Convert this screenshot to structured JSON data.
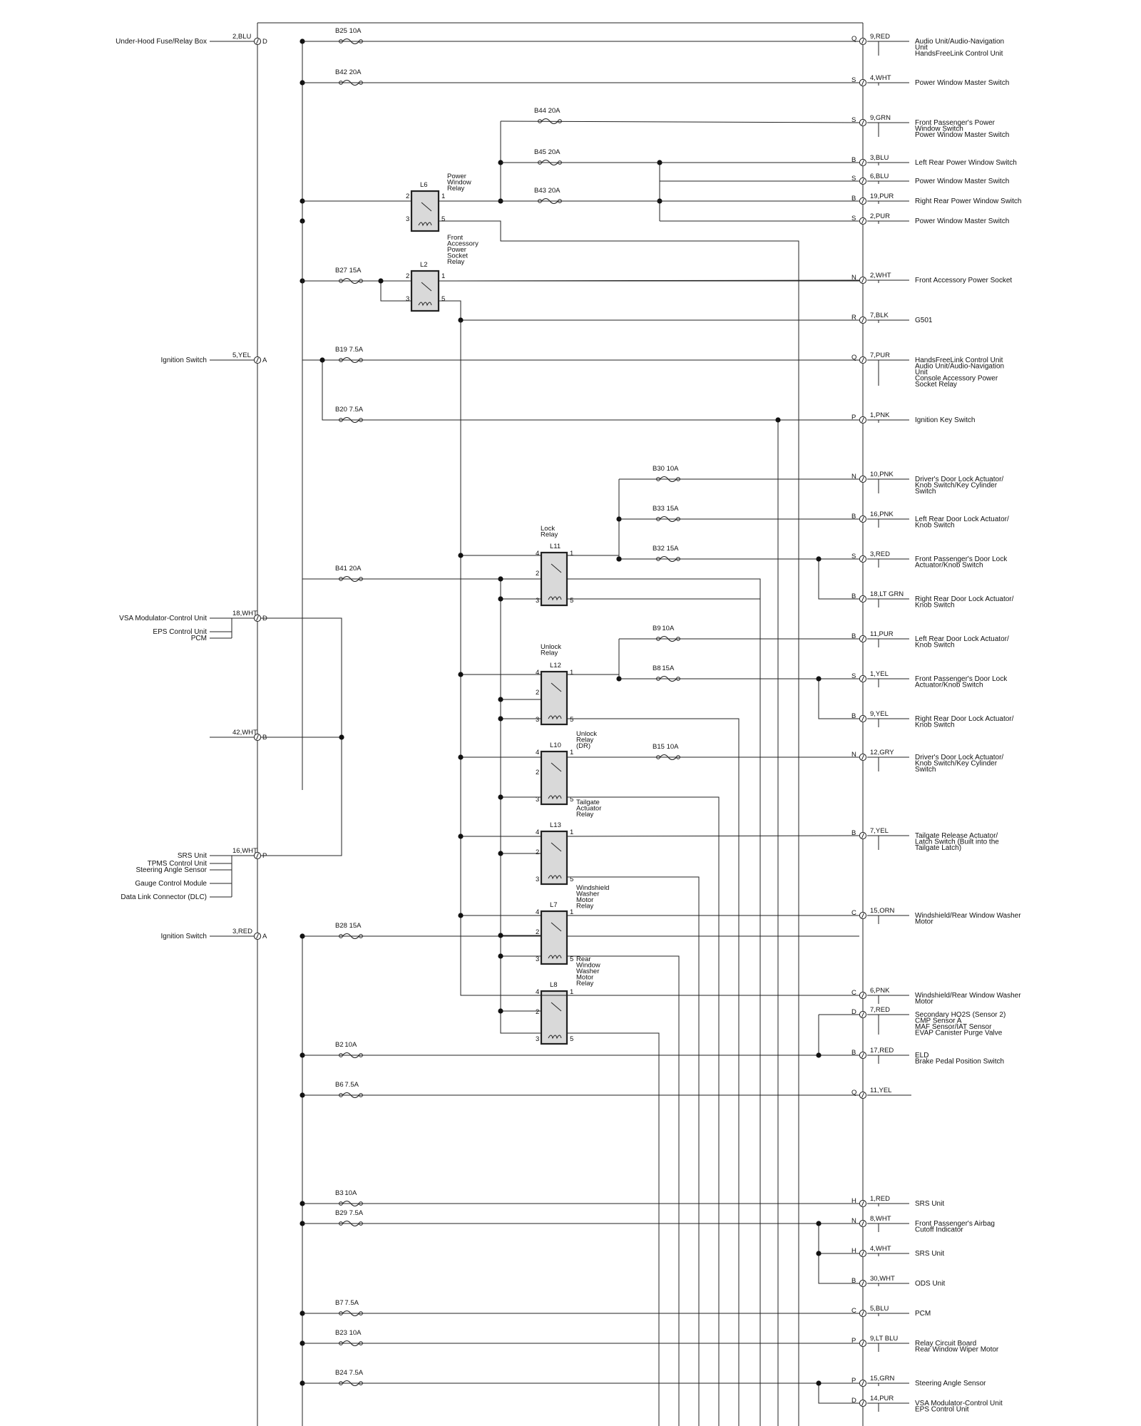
{
  "inputs": [
    {
      "label": "Under-Hood Fuse/Relay Box",
      "wire": "2,BLU",
      "pin": "D"
    },
    {
      "label": "Ignition Switch",
      "wire": "5,YEL",
      "pin": "A"
    },
    {
      "label": "VSA Modulator-Control Unit",
      "extra": [
        "EPS Control Unit",
        "PCM"
      ],
      "wire": "18,WHT",
      "pin": "D"
    },
    {
      "label": "",
      "wire": "42,WHT",
      "pin": "B"
    },
    {
      "label": "SRS Unit",
      "extra": [
        "TPMS Control Unit",
        "Steering Angle Sensor",
        "Gauge Control Module",
        "Data Link Connector (DLC)"
      ],
      "wire": "16,WHT",
      "pin": "P"
    },
    {
      "label": "Ignition Switch",
      "wire": "3,RED",
      "pin": "A"
    }
  ],
  "fuses": [
    {
      "id": "B25",
      "rating": "10A"
    },
    {
      "id": "B42",
      "rating": "20A"
    },
    {
      "id": "B44",
      "rating": "20A"
    },
    {
      "id": "B45",
      "rating": "20A"
    },
    {
      "id": "B43",
      "rating": "20A"
    },
    {
      "id": "B27",
      "rating": "15A"
    },
    {
      "id": "B19",
      "rating": "7.5A"
    },
    {
      "id": "B20",
      "rating": "7.5A"
    },
    {
      "id": "B30",
      "rating": "10A"
    },
    {
      "id": "B33",
      "rating": "15A"
    },
    {
      "id": "B32",
      "rating": "15A"
    },
    {
      "id": "B41",
      "rating": "20A"
    },
    {
      "id": "B9",
      "rating": "10A"
    },
    {
      "id": "B8",
      "rating": "15A"
    },
    {
      "id": "B15",
      "rating": "10A"
    },
    {
      "id": "B28",
      "rating": "15A"
    },
    {
      "id": "B2",
      "rating": "10A"
    },
    {
      "id": "B6",
      "rating": "7.5A"
    },
    {
      "id": "B3",
      "rating": "10A"
    },
    {
      "id": "B29",
      "rating": "7.5A"
    },
    {
      "id": "B7",
      "rating": "7.5A"
    },
    {
      "id": "B23",
      "rating": "10A"
    },
    {
      "id": "B24",
      "rating": "7.5A"
    }
  ],
  "relays": [
    {
      "id": "L6",
      "name": [
        "Power",
        "Window",
        "Relay"
      ]
    },
    {
      "id": "L2",
      "name": [
        "Front",
        "Accessory",
        "Power",
        "Socket",
        "Relay"
      ]
    },
    {
      "id": "L11",
      "name": [
        "Lock",
        "Relay"
      ]
    },
    {
      "id": "L12",
      "name": [
        "Unlock",
        "Relay"
      ]
    },
    {
      "id": "L10",
      "name": [
        "Unlock",
        "Relay",
        "(DR)"
      ]
    },
    {
      "id": "L13",
      "name": [
        "Tailgate",
        "Actuator",
        "Relay"
      ]
    },
    {
      "id": "L7",
      "name": [
        "Windshield",
        "Washer",
        "Motor",
        "Relay"
      ]
    },
    {
      "id": "L8",
      "name": [
        "Rear",
        "Window",
        "Washer",
        "Motor",
        "Relay"
      ]
    }
  ],
  "relay_pins": [
    "1",
    "2",
    "3",
    "4",
    "5"
  ],
  "outputs": [
    {
      "pin": "Q",
      "wire": "9,RED",
      "lines": [
        "Audio Unit/Audio-Navigation",
        "Unit",
        "HandsFreeLink Control Unit"
      ]
    },
    {
      "pin": "S",
      "wire": "4,WHT",
      "lines": [
        "Power Window Master Switch"
      ]
    },
    {
      "pin": "S",
      "wire": "9,GRN",
      "lines": [
        "Front Passenger's Power",
        "Window Switch",
        "Power Window Master Switch"
      ]
    },
    {
      "pin": "B",
      "wire": "3,BLU",
      "lines": [
        "Left Rear Power Window Switch"
      ]
    },
    {
      "pin": "S",
      "wire": "6,BLU",
      "lines": [
        "Power Window Master Switch"
      ]
    },
    {
      "pin": "B",
      "wire": "19,PUR",
      "lines": [
        "Right Rear Power Window Switch"
      ]
    },
    {
      "pin": "S",
      "wire": "2,PUR",
      "lines": [
        "Power Window Master Switch"
      ]
    },
    {
      "pin": "N",
      "wire": "2,WHT",
      "lines": [
        "Front Accessory Power Socket"
      ]
    },
    {
      "pin": "R",
      "wire": "7,BLK",
      "lines": [
        "G501"
      ]
    },
    {
      "pin": "Q",
      "wire": "7,PUR",
      "lines": [
        "HandsFreeLink Control Unit",
        "Audio Unit/Audio-Navigation",
        "Unit",
        "Console Accessory Power",
        "Socket Relay"
      ]
    },
    {
      "pin": "P",
      "wire": "1,PNK",
      "lines": [
        "Ignition Key Switch"
      ]
    },
    {
      "pin": "N",
      "wire": "10,PNK",
      "lines": [
        "Driver's Door Lock Actuator/",
        "Knob Switch/Key Cylinder",
        "Switch"
      ]
    },
    {
      "pin": "B",
      "wire": "16,PNK",
      "lines": [
        "Left Rear Door Lock Actuator/",
        "Knob Switch"
      ]
    },
    {
      "pin": "S",
      "wire": "3,RED",
      "lines": [
        "Front Passenger's Door Lock",
        "Actuator/Knob Switch"
      ]
    },
    {
      "pin": "B",
      "wire": "18,LT GRN",
      "lines": [
        "Right Rear Door Lock Actuator/",
        "Knob Switch"
      ]
    },
    {
      "pin": "B",
      "wire": "11,PUR",
      "lines": [
        "Left Rear Door Lock Actuator/",
        "Knob Switch"
      ]
    },
    {
      "pin": "S",
      "wire": "1,YEL",
      "lines": [
        "Front Passenger's Door Lock",
        "Actuator/Knob Switch"
      ]
    },
    {
      "pin": "B",
      "wire": "9,YEL",
      "lines": [
        "Right Rear Door Lock Actuator/",
        "Knob Switch"
      ]
    },
    {
      "pin": "N",
      "wire": "12,GRY",
      "lines": [
        "Driver's Door Lock Actuator/",
        "Knob Switch/Key Cylinder",
        "Switch"
      ]
    },
    {
      "pin": "B",
      "wire": "7,YEL",
      "lines": [
        "Tailgate Release Actuator/",
        "Latch Switch (Built into the",
        "Tailgate Latch)"
      ]
    },
    {
      "pin": "C",
      "wire": "15,ORN",
      "lines": [
        "Windshield/Rear Window Washer",
        "Motor"
      ]
    },
    {
      "pin": "C",
      "wire": "6,PNK",
      "lines": [
        "Windshield/Rear Window Washer",
        "Motor"
      ]
    },
    {
      "pin": "D",
      "wire": "7,RED",
      "lines": [
        "Secondary HO2S (Sensor 2)",
        "CMP Sensor A",
        "MAF Sensor/IAT Sensor",
        "EVAP Canister Purge Valve"
      ]
    },
    {
      "pin": "B",
      "wire": "17,RED",
      "lines": [
        "ELD",
        "Brake Pedal Position Switch"
      ]
    },
    {
      "pin": "Q",
      "wire": "11,YEL",
      "lines": []
    },
    {
      "pin": "H",
      "wire": "1,RED",
      "lines": [
        "SRS Unit"
      ]
    },
    {
      "pin": "N",
      "wire": "8,WHT",
      "lines": [
        "Front Passenger's Airbag",
        "Cutoff Indicator"
      ]
    },
    {
      "pin": "H",
      "wire": "4,WHT",
      "lines": [
        "SRS Unit"
      ]
    },
    {
      "pin": "B",
      "wire": "30,WHT",
      "lines": [
        "ODS Unit"
      ]
    },
    {
      "pin": "C",
      "wire": "5,BLU",
      "lines": [
        "PCM"
      ]
    },
    {
      "pin": "P",
      "wire": "9,LT BLU",
      "lines": [
        "Relay Circuit Board",
        "Rear Window Wiper Motor"
      ]
    },
    {
      "pin": "P",
      "wire": "15,GRN",
      "lines": [
        "Steering Angle Sensor"
      ]
    },
    {
      "pin": "D",
      "wire": "14,PUR",
      "lines": [
        "VSA Modulator-Control Unit",
        "EPS Control Unit"
      ]
    }
  ]
}
